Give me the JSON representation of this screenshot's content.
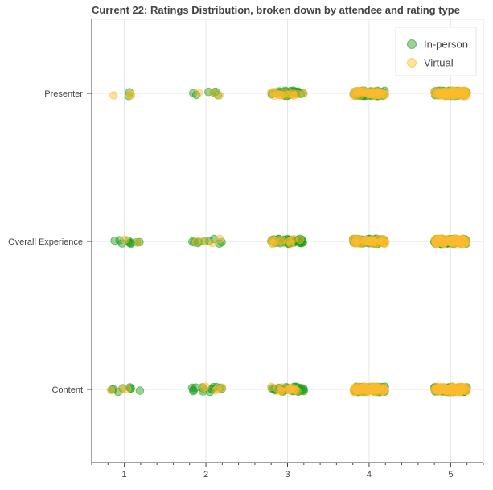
{
  "chart_data": {
    "type": "scatter",
    "title": "Current 22: Ratings Distribution, broken down by attendee and rating type",
    "xlabel": "",
    "ylabel": "",
    "x_ticks": [
      "1",
      "2",
      "3",
      "4",
      "5"
    ],
    "xlim": [
      0.6,
      5.4
    ],
    "categories": [
      "Presenter",
      "Overall Experience",
      "Content"
    ],
    "jitter": {
      "x": 0.2,
      "y": 0.2
    },
    "grid": true,
    "legend_position": "top-right",
    "series": [
      {
        "name": "In-person",
        "color": "#1f9e1f",
        "counts": {
          "Presenter": [
            2,
            6,
            30,
            70,
            70
          ],
          "Overall Experience": [
            9,
            9,
            40,
            60,
            110
          ],
          "Content": [
            8,
            14,
            40,
            80,
            110
          ]
        }
      },
      {
        "name": "Virtual",
        "color": "#fdbb2f",
        "counts": {
          "Presenter": [
            3,
            3,
            15,
            40,
            60
          ],
          "Overall Experience": [
            2,
            4,
            12,
            40,
            70
          ],
          "Content": [
            3,
            5,
            15,
            60,
            80
          ]
        }
      }
    ]
  }
}
